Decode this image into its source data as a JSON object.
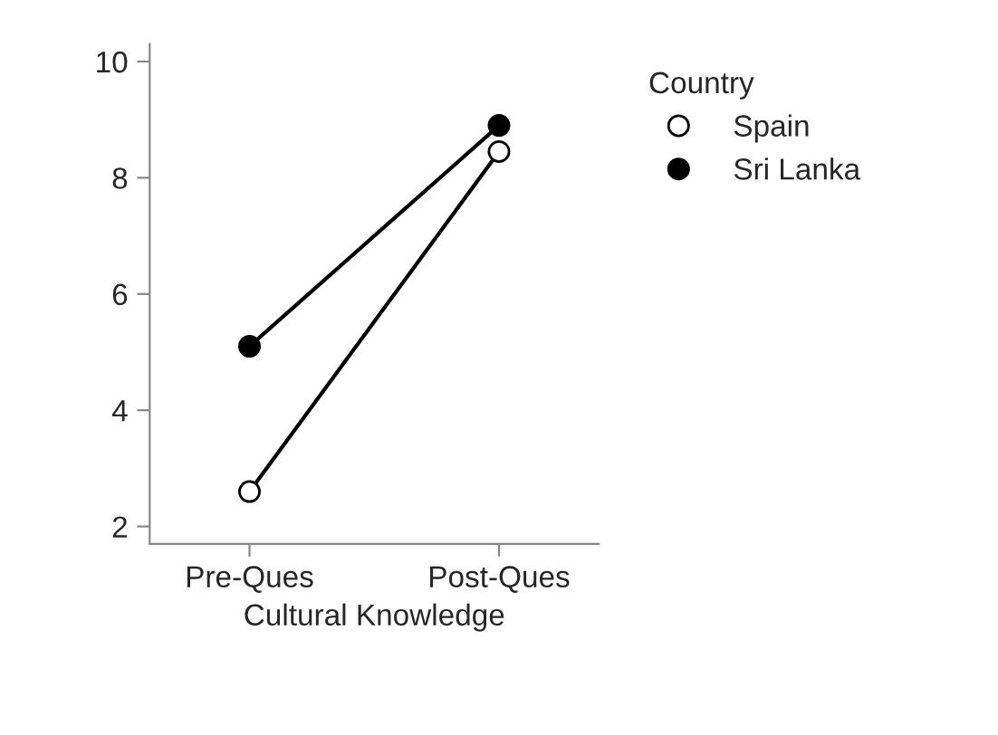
{
  "chart_data": {
    "type": "line",
    "xlabel": "Cultural Knowledge",
    "categories": [
      "Pre-Ques",
      "Post-Ques"
    ],
    "series": [
      {
        "name": "Spain",
        "color": "#ffffff",
        "values": [
          2.6,
          8.45
        ]
      },
      {
        "name": "Sri Lanka",
        "color": "#000000",
        "values": [
          5.1,
          8.9
        ]
      }
    ],
    "ylim": [
      1.7,
      10.3
    ],
    "yticks": [
      2,
      4,
      6,
      8,
      10
    ],
    "legend": "top right",
    "legend_title": "Country",
    "grid": false,
    "marker": "circle",
    "line_style": "solid"
  }
}
